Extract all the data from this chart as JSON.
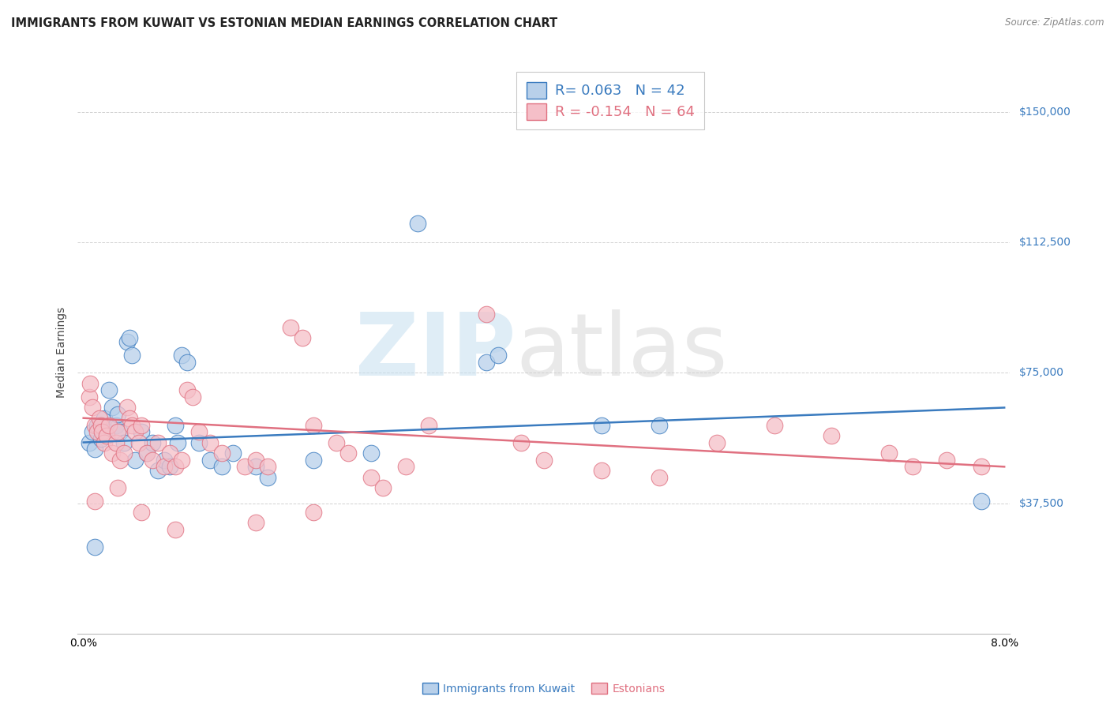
{
  "title": "IMMIGRANTS FROM KUWAIT VS ESTONIAN MEDIAN EARNINGS CORRELATION CHART",
  "source": "Source: ZipAtlas.com",
  "ylabel": "Median Earnings",
  "y_ticks": [
    37500,
    75000,
    112500,
    150000
  ],
  "y_tick_labels": [
    "$37,500",
    "$75,000",
    "$112,500",
    "$150,000"
  ],
  "xlim": [
    0.0,
    8.0
  ],
  "ylim": [
    0,
    162000
  ],
  "watermark_zip": "ZIP",
  "watermark_atlas": "atlas",
  "legend_blue_r": "0.063",
  "legend_blue_n": "42",
  "legend_pink_r": "-0.154",
  "legend_pink_n": "64",
  "blue_color": "#b8d0ea",
  "pink_color": "#f5bfc8",
  "blue_line_color": "#3a7bbf",
  "pink_line_color": "#e07080",
  "blue_scatter_x": [
    0.05,
    0.08,
    0.1,
    0.12,
    0.15,
    0.18,
    0.2,
    0.22,
    0.25,
    0.28,
    0.3,
    0.32,
    0.35,
    0.38,
    0.4,
    0.42,
    0.45,
    0.5,
    0.55,
    0.6,
    0.65,
    0.7,
    0.75,
    0.8,
    0.82,
    0.85,
    0.9,
    1.0,
    1.1,
    1.2,
    1.3,
    1.5,
    1.6,
    2.0,
    2.5,
    2.9,
    3.5,
    3.6,
    4.5,
    5.0,
    0.1,
    7.8
  ],
  "blue_scatter_y": [
    55000,
    58000,
    53000,
    60000,
    56000,
    62000,
    58000,
    70000,
    65000,
    60000,
    63000,
    58000,
    55000,
    84000,
    85000,
    80000,
    50000,
    58000,
    52000,
    55000,
    47000,
    50000,
    48000,
    60000,
    55000,
    80000,
    78000,
    55000,
    50000,
    48000,
    52000,
    48000,
    45000,
    50000,
    52000,
    118000,
    78000,
    80000,
    60000,
    60000,
    25000,
    38000
  ],
  "pink_scatter_x": [
    0.05,
    0.06,
    0.08,
    0.1,
    0.12,
    0.14,
    0.15,
    0.16,
    0.18,
    0.2,
    0.22,
    0.25,
    0.28,
    0.3,
    0.32,
    0.35,
    0.38,
    0.4,
    0.42,
    0.45,
    0.48,
    0.5,
    0.55,
    0.6,
    0.65,
    0.7,
    0.75,
    0.8,
    0.85,
    0.9,
    0.95,
    1.0,
    1.1,
    1.2,
    1.4,
    1.5,
    1.6,
    1.8,
    1.9,
    2.0,
    2.2,
    2.3,
    2.5,
    2.6,
    2.8,
    3.0,
    3.5,
    3.8,
    4.0,
    4.5,
    5.0,
    5.5,
    6.0,
    6.5,
    7.0,
    7.2,
    7.5,
    7.8,
    0.1,
    0.3,
    0.5,
    0.8,
    1.5,
    2.0
  ],
  "pink_scatter_y": [
    68000,
    72000,
    65000,
    60000,
    58000,
    62000,
    60000,
    58000,
    55000,
    57000,
    60000,
    52000,
    55000,
    58000,
    50000,
    52000,
    65000,
    62000,
    60000,
    58000,
    55000,
    60000,
    52000,
    50000,
    55000,
    48000,
    52000,
    48000,
    50000,
    70000,
    68000,
    58000,
    55000,
    52000,
    48000,
    50000,
    48000,
    88000,
    85000,
    60000,
    55000,
    52000,
    45000,
    42000,
    48000,
    60000,
    92000,
    55000,
    50000,
    47000,
    45000,
    55000,
    60000,
    57000,
    52000,
    48000,
    50000,
    48000,
    38000,
    42000,
    35000,
    30000,
    32000,
    35000
  ],
  "background_color": "#ffffff",
  "grid_color": "#cccccc",
  "title_fontsize": 10.5,
  "axis_label_fontsize": 10,
  "tick_fontsize": 10,
  "legend_fontsize": 13
}
